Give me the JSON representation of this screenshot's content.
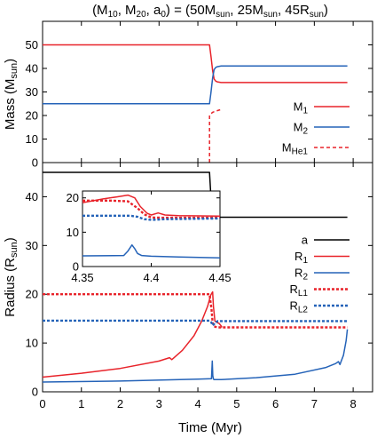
{
  "chart_data": [
    {
      "id": "mass",
      "type": "line",
      "title": "(M10, M20, a0) = (50Msun, 25Msun, 45Rsun)",
      "ylabel": "Mass (Msun)",
      "xlim": [
        0,
        8.5
      ],
      "ylim": [
        0,
        60
      ],
      "yticks": [
        0,
        10,
        20,
        30,
        40,
        50
      ],
      "legend_position": "right",
      "series": [
        {
          "name": "M1",
          "color": "#e8232a",
          "dash": "solid",
          "x": [
            0,
            4.3,
            4.34,
            4.38,
            4.42,
            4.46,
            4.5,
            4.6,
            7.85
          ],
          "y": [
            50,
            50,
            45,
            39,
            35.5,
            34.6,
            34.3,
            34,
            34
          ]
        },
        {
          "name": "M2",
          "color": "#2563b8",
          "dash": "solid",
          "x": [
            0,
            4.3,
            4.34,
            4.38,
            4.42,
            4.46,
            4.5,
            4.6,
            7.85
          ],
          "y": [
            25,
            25,
            30,
            36,
            39.5,
            40.4,
            40.7,
            41,
            41
          ]
        },
        {
          "name": "MHe1",
          "color": "#e8232a",
          "dash": "dashed",
          "x": [
            4.3,
            4.3,
            4.33,
            4.36,
            4.37,
            4.45,
            4.55,
            4.62
          ],
          "y": [
            0,
            20,
            20.5,
            21,
            21.3,
            21.8,
            22.3,
            22.6
          ]
        }
      ]
    },
    {
      "id": "radius",
      "type": "line",
      "xlabel": "Time (Myr)",
      "ylabel": "Radius (Rsun)",
      "xlim": [
        0,
        8.5
      ],
      "ylim": [
        0,
        47
      ],
      "xticks": [
        0,
        1,
        2,
        3,
        4,
        5,
        6,
        7,
        8
      ],
      "yticks": [
        0,
        10,
        20,
        30,
        40
      ],
      "legend_position": "right",
      "series": [
        {
          "name": "a",
          "color": "#000000",
          "dash": "solid",
          "x": [
            0,
            4.3,
            4.35,
            4.38,
            4.42,
            4.46,
            4.52,
            7.85
          ],
          "y": [
            45,
            45,
            38,
            35.3,
            34.9,
            35.5,
            35.8,
            35.8
          ]
        },
        {
          "name": "R1",
          "color": "#e8232a",
          "dash": "solid",
          "x": [
            0,
            1.0,
            2.0,
            3.0,
            3.27,
            3.33,
            3.6,
            3.9,
            4.1,
            4.25,
            4.33,
            4.38,
            4.4,
            4.44,
            4.5,
            4.55,
            4.6,
            4.62
          ],
          "y": [
            3,
            3.8,
            4.8,
            6.3,
            7.0,
            6.6,
            8.5,
            11.5,
            14.5,
            17.5,
            19.8,
            20.5,
            17.5,
            14.5,
            14.2,
            14.0,
            13.5,
            13.2
          ]
        },
        {
          "name": "R2",
          "color": "#2563b8",
          "dash": "solid",
          "x": [
            0,
            2.0,
            4.0,
            4.35,
            4.37,
            4.385,
            4.4,
            4.42,
            4.6,
            5.5,
            6.5,
            7.3,
            7.55,
            7.62,
            7.66,
            7.75,
            7.82,
            7.85
          ],
          "y": [
            2.0,
            2.2,
            2.6,
            2.7,
            6.3,
            3.3,
            2.6,
            2.5,
            2.5,
            2.9,
            3.6,
            5.0,
            5.8,
            6.2,
            5.6,
            7.5,
            10.5,
            12.8
          ]
        },
        {
          "name": "RL1",
          "color": "#e8232a",
          "dash": "dotted",
          "x": [
            0,
            4.3,
            4.35,
            4.38,
            4.42,
            4.46,
            4.52,
            7.85
          ],
          "y": [
            20,
            20,
            17,
            14.2,
            13.4,
            13.3,
            13.2,
            13.2
          ]
        },
        {
          "name": "RL2",
          "color": "#2563b8",
          "dash": "dotted",
          "x": [
            0,
            4.3,
            4.35,
            4.38,
            4.42,
            4.46,
            4.52,
            7.85
          ],
          "y": [
            14.6,
            14.6,
            14.2,
            13.6,
            13.9,
            14.3,
            14.5,
            14.5
          ]
        }
      ],
      "inset": {
        "xlim": [
          4.35,
          4.45
        ],
        "ylim": [
          0,
          22
        ],
        "xticks": [
          4.35,
          4.4,
          4.45
        ],
        "xtick_labels": [
          "4.35",
          "4.4",
          "4.45"
        ],
        "yticks": [
          0,
          10,
          20
        ],
        "series": [
          {
            "name": "R1",
            "color": "#e8232a",
            "dash": "solid",
            "x": [
              4.35,
              4.365,
              4.375,
              4.383,
              4.388,
              4.392,
              4.397,
              4.4,
              4.405,
              4.41,
              4.42,
              4.45
            ],
            "y": [
              18.6,
              19.7,
              20.3,
              20.8,
              20.0,
              17.5,
              15.5,
              15.0,
              15.6,
              15.0,
              14.8,
              14.7
            ]
          },
          {
            "name": "R2",
            "color": "#2563b8",
            "dash": "solid",
            "x": [
              4.35,
              4.38,
              4.383,
              4.386,
              4.388,
              4.39,
              4.393,
              4.4,
              4.42,
              4.45
            ],
            "y": [
              3.1,
              3.2,
              4.5,
              6.3,
              5.2,
              3.8,
              3.2,
              3.0,
              2.8,
              2.5
            ]
          },
          {
            "name": "RL1",
            "color": "#e8232a",
            "dash": "dotted",
            "x": [
              4.35,
              4.37,
              4.383,
              4.39,
              4.395,
              4.4,
              4.41,
              4.45
            ],
            "y": [
              19.2,
              19.2,
              19.0,
              17.0,
              15.2,
              14.3,
              14.2,
              14.2
            ]
          },
          {
            "name": "RL2",
            "color": "#2563b8",
            "dash": "dotted",
            "x": [
              4.35,
              4.385,
              4.39,
              4.395,
              4.4,
              4.41,
              4.45
            ],
            "y": [
              14.8,
              14.8,
              14.5,
              13.8,
              13.6,
              13.8,
              14.0
            ]
          }
        ]
      }
    }
  ],
  "ui": {
    "title": {
      "open": "(M",
      "s1": "10",
      "c1": ", M",
      "s2": "20",
      "c2": ", a",
      "s3": "0",
      "c3": ") = (50M",
      "s4": "sun",
      "c4": ", 25M",
      "s5": "sun",
      "c5": ", 45R",
      "s6": "sun",
      "c6": ")"
    },
    "mass_ylabel": {
      "base": "Mass (M",
      "sub": "sun",
      "end": ")"
    },
    "radius_ylabel": {
      "base": "Radius (R",
      "sub": "sun",
      "end": ")"
    },
    "xlabel": "Time (Myr)",
    "mass_legend": [
      {
        "base": "M",
        "sub": "1"
      },
      {
        "base": "M",
        "sub": "2"
      },
      {
        "base": "M",
        "sub": "He1"
      }
    ],
    "radius_legend": [
      {
        "base": "a",
        "sub": ""
      },
      {
        "base": "R",
        "sub": "1"
      },
      {
        "base": "R",
        "sub": "2"
      },
      {
        "base": "R",
        "sub": "L1"
      },
      {
        "base": "R",
        "sub": "L2"
      }
    ]
  }
}
